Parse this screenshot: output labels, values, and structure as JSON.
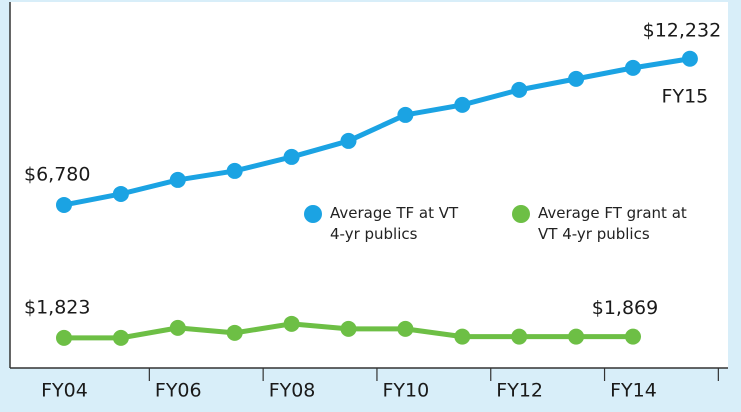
{
  "chart_data": {
    "type": "line",
    "categories": [
      "FY04",
      null,
      "FY06",
      null,
      "FY08",
      null,
      "FY10",
      null,
      "FY12",
      null,
      "FY14",
      null
    ],
    "annotation": "FY15",
    "series": [
      {
        "name": "Average TF at VT 4-yr publics",
        "color": "#1ba3e3",
        "values": [
          6780,
          7190,
          7713,
          8049,
          8571,
          9168,
          10138,
          10511,
          11071,
          11481,
          11892,
          12232
        ],
        "value_labels": [
          "$6,780",
          null,
          null,
          null,
          null,
          null,
          null,
          null,
          null,
          null,
          null,
          "$12,232"
        ]
      },
      {
        "name": "Average FT grant at VT 4-yr publics",
        "color": "#6dbf45",
        "values": [
          1823,
          1823,
          2197,
          2011,
          2347,
          2160,
          2160,
          1869,
          1869,
          1869,
          1869,
          null
        ],
        "value_labels": [
          "$1,823",
          null,
          null,
          null,
          null,
          null,
          null,
          null,
          null,
          null,
          "$1,869",
          null
        ]
      }
    ],
    "ylim": [
      700,
      14050
    ],
    "grid": false
  }
}
